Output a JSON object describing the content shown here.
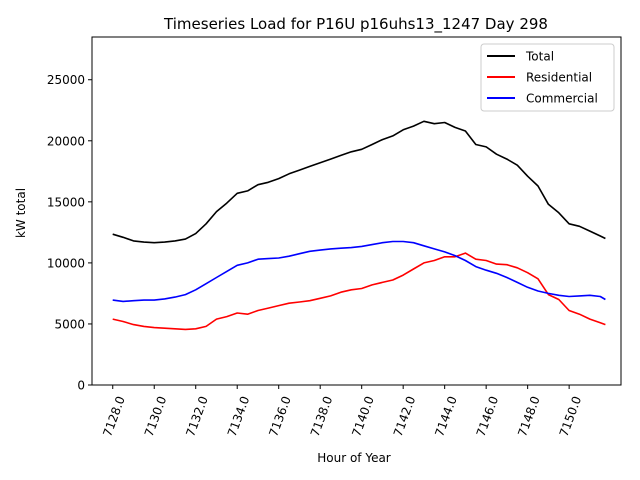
{
  "chart_data": {
    "type": "line",
    "title": "Timeseries Load for P16U p16uhs13_1247  Day 298",
    "xlabel": "Hour of Year",
    "ylabel": "kW total",
    "xlim": [
      7127.0,
      7152.5
    ],
    "ylim": [
      0,
      28500
    ],
    "xticks": [
      7128.0,
      7130.0,
      7132.0,
      7134.0,
      7136.0,
      7138.0,
      7140.0,
      7142.0,
      7144.0,
      7146.0,
      7148.0,
      7150.0
    ],
    "xtick_labels": [
      "7128.0",
      "7130.0",
      "7132.0",
      "7134.0",
      "7136.0",
      "7138.0",
      "7140.0",
      "7142.0",
      "7144.0",
      "7146.0",
      "7148.0",
      "7150.0"
    ],
    "yticks": [
      0,
      5000,
      10000,
      15000,
      20000,
      25000
    ],
    "ytick_labels": [
      "0",
      "5000",
      "10000",
      "15000",
      "20000",
      "25000"
    ],
    "grid": false,
    "legend_position": "top-right",
    "x": [
      7128.0,
      7128.5,
      7129.0,
      7129.5,
      7130.0,
      7130.5,
      7131.0,
      7131.5,
      7132.0,
      7132.5,
      7133.0,
      7133.5,
      7134.0,
      7134.5,
      7135.0,
      7135.5,
      7136.0,
      7136.5,
      7137.0,
      7137.5,
      7138.0,
      7138.5,
      7139.0,
      7139.5,
      7140.0,
      7140.5,
      7141.0,
      7141.5,
      7142.0,
      7142.5,
      7143.0,
      7143.5,
      7144.0,
      7144.5,
      7145.0,
      7145.5,
      7146.0,
      7146.5,
      7147.0,
      7147.5,
      7148.0,
      7148.5,
      7149.0,
      7149.5,
      7150.0,
      7150.5,
      7151.0,
      7151.5,
      7151.75
    ],
    "series": [
      {
        "name": "Total",
        "color": "#000000",
        "values": [
          12350,
          12100,
          11800,
          11700,
          11650,
          11700,
          11800,
          11950,
          12400,
          13200,
          14200,
          14900,
          15700,
          15900,
          16400,
          16600,
          16900,
          17300,
          17600,
          17900,
          18200,
          18500,
          18800,
          19100,
          19300,
          19700,
          20100,
          20400,
          20900,
          21200,
          21600,
          21400,
          21500,
          21100,
          20800,
          19700,
          19500,
          18900,
          18500,
          18000,
          17100,
          16300,
          14800,
          14100,
          13200,
          13000,
          12600,
          12200,
          12000
        ]
      },
      {
        "name": "Residential",
        "color": "#ff0000",
        "values": [
          5400,
          5200,
          4950,
          4800,
          4700,
          4650,
          4600,
          4550,
          4600,
          4800,
          5400,
          5600,
          5900,
          5800,
          6100,
          6300,
          6500,
          6700,
          6800,
          6900,
          7100,
          7300,
          7600,
          7800,
          7900,
          8200,
          8400,
          8600,
          9000,
          9500,
          10000,
          10200,
          10500,
          10500,
          10800,
          10300,
          10200,
          9900,
          9850,
          9600,
          9200,
          8700,
          7400,
          7000,
          6100,
          5800,
          5400,
          5100,
          4950
        ]
      },
      {
        "name": "Commercial",
        "color": "#0000ff",
        "values": [
          6950,
          6850,
          6900,
          6950,
          6950,
          7050,
          7200,
          7400,
          7800,
          8300,
          8800,
          9300,
          9800,
          10000,
          10300,
          10350,
          10400,
          10550,
          10750,
          10950,
          11050,
          11150,
          11200,
          11250,
          11350,
          11500,
          11650,
          11750,
          11750,
          11650,
          11400,
          11150,
          10900,
          10600,
          10200,
          9700,
          9400,
          9150,
          8800,
          8400,
          8000,
          7700,
          7500,
          7350,
          7250,
          7300,
          7350,
          7250,
          7000
        ]
      }
    ]
  }
}
